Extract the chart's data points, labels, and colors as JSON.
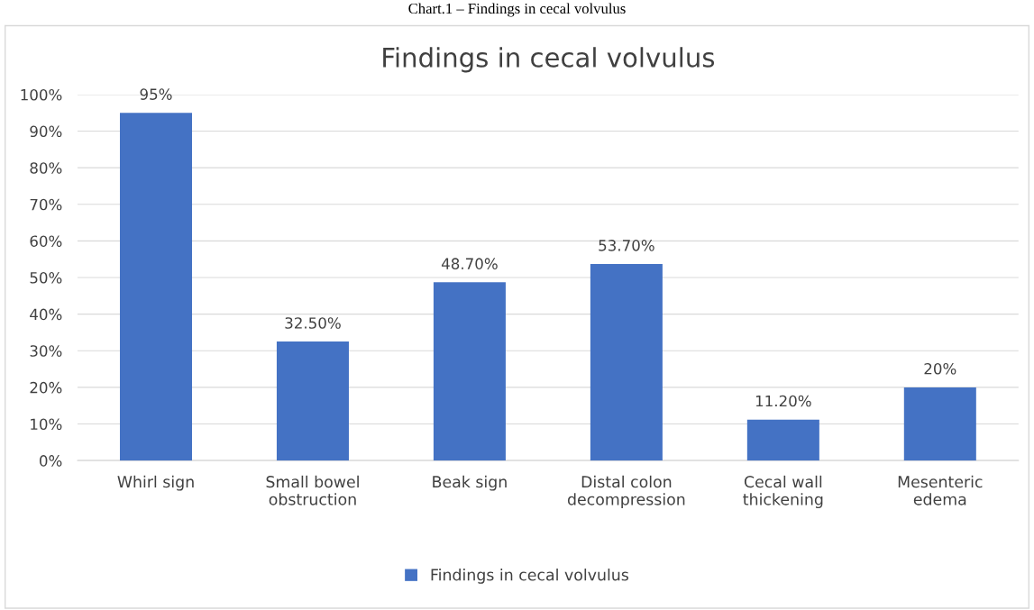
{
  "chart_data": {
    "type": "bar",
    "title": "Findings in cecal volvulus",
    "annotations": [
      "Chart.1 – Findings in cecal volvulus"
    ],
    "categories": [
      "Whirl sign",
      "Small bowel\nobstruction",
      "Beak sign",
      "Distal colon\ndecompression",
      "Cecal wall\nthickening",
      "Mesenteric\nedema"
    ],
    "series": [
      {
        "name": "Findings in cecal volvulus",
        "color": "#4472c4",
        "values": [
          95,
          32.5,
          48.7,
          53.7,
          11.2,
          20
        ],
        "value_labels": [
          "95%",
          "32.50%",
          "48.70%",
          "53.70%",
          "11.20%",
          "20%"
        ]
      }
    ],
    "ylim": [
      0,
      100
    ],
    "yticks": [
      {
        "value": 0,
        "label": "0%"
      },
      {
        "value": 10,
        "label": "10%"
      },
      {
        "value": 20,
        "label": "20%"
      },
      {
        "value": 30,
        "label": "30%"
      },
      {
        "value": 40,
        "label": "40%"
      },
      {
        "value": 50,
        "label": "50%"
      },
      {
        "value": 60,
        "label": "60%"
      },
      {
        "value": 70,
        "label": "70%"
      },
      {
        "value": 80,
        "label": "80%"
      },
      {
        "value": 90,
        "label": "90%"
      },
      {
        "value": 100,
        "label": "100%"
      }
    ],
    "grid": "y",
    "legend": "bottom"
  }
}
